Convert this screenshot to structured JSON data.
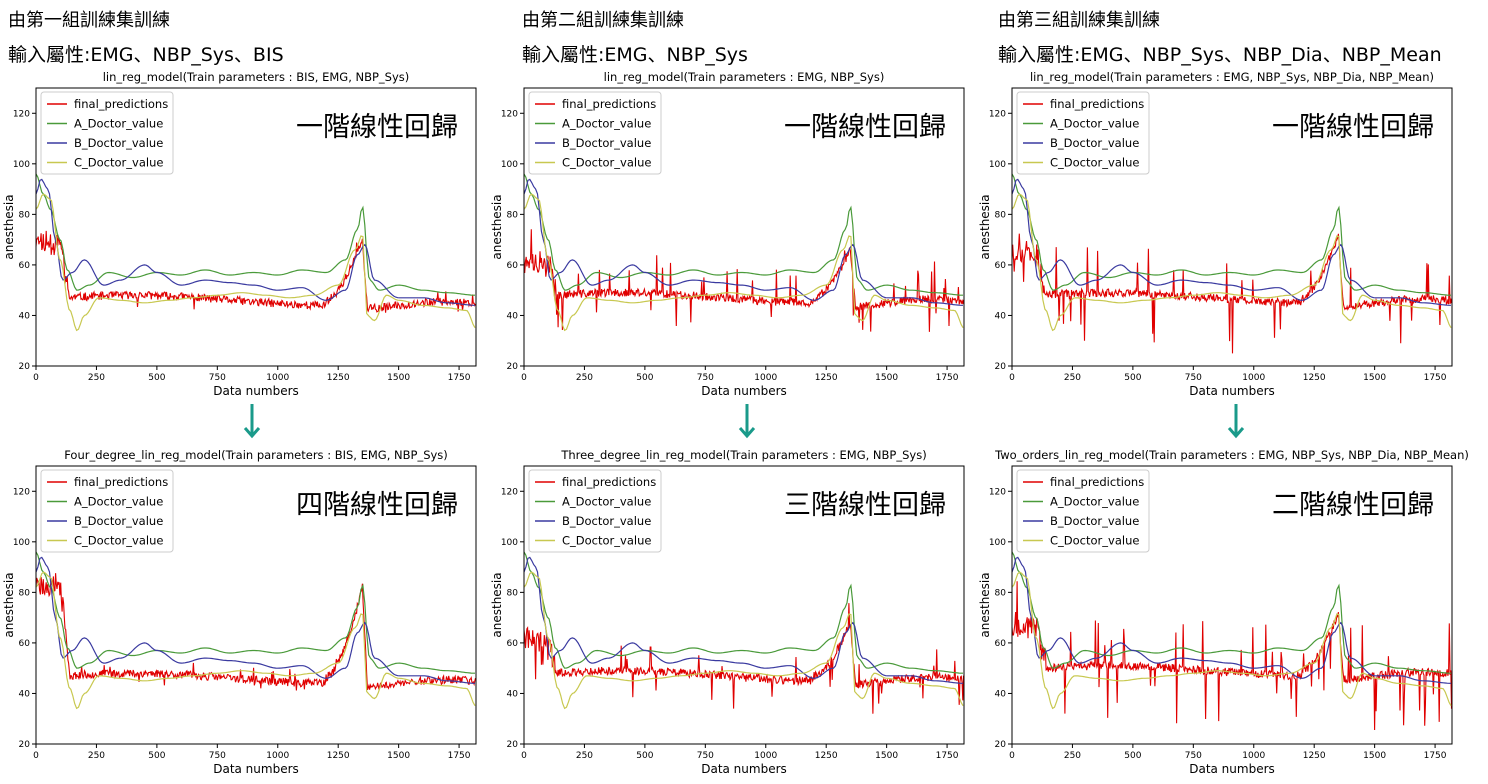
{
  "groups": [
    {
      "heading": "由第一組訓練集訓練",
      "attributes": "輸入屬性:EMG、NBP_Sys、BIS",
      "panels": [
        {
          "title": "lin_reg_model(Train parameters : BIS, EMG, NBP_Sys)",
          "annotation": "一階線性回歸",
          "pred_seed": 11,
          "pred_base": 46,
          "pred_early": 70,
          "spike_amp": 3,
          "spike_rate": 0.03,
          "peak": 70
        },
        {
          "title": "Four_degree_lin_reg_model(Train parameters : BIS, EMG, NBP_Sys)",
          "annotation": "四階線性回歸",
          "pred_seed": 23,
          "pred_base": 46,
          "pred_early": 84,
          "spike_amp": 3,
          "spike_rate": 0.03,
          "peak": 82
        }
      ]
    },
    {
      "heading": "由第二組訓練集訓練",
      "attributes": "輸入屬性:EMG、NBP_Sys",
      "panels": [
        {
          "title": "lin_reg_model(Train parameters : EMG, NBP_Sys)",
          "annotation": "一階線性回歸",
          "pred_seed": 37,
          "pred_base": 47,
          "pred_early": 62,
          "spike_amp": 10,
          "spike_rate": 0.06,
          "peak": 66
        },
        {
          "title": "Three_degree_lin_reg_model(Train parameters : EMG, NBP_Sys)",
          "annotation": "三階線性回歸",
          "pred_seed": 41,
          "pred_base": 47,
          "pred_early": 62,
          "spike_amp": 8,
          "spike_rate": 0.05,
          "peak": 68
        }
      ]
    },
    {
      "heading": "由第三組訓練集訓練",
      "attributes": "輸入屬性:EMG、NBP_Sys、NBP_Dia、NBP_Mean",
      "panels": [
        {
          "title": "lin_reg_model(Train parameters : EMG, NBP_Sys, NBP_Dia, NBP_Mean)",
          "annotation": "一階線性回歸",
          "pred_seed": 53,
          "pred_base": 47,
          "pred_early": 66,
          "spike_amp": 14,
          "spike_rate": 0.06,
          "peak": 72
        },
        {
          "title": "Two_orders_lin_reg_model(Train parameters : EMG, NBP_Sys, NBP_Dia, NBP_Mean)",
          "annotation": "二階線性回歸",
          "pred_seed": 67,
          "pred_base": 49,
          "pred_early": 68,
          "spike_amp": 14,
          "spike_rate": 0.07,
          "peak": 72
        }
      ]
    }
  ],
  "chart_data": {
    "type": "line",
    "xlabel": "Data numbers",
    "ylabel": "anesthesia",
    "xlim": [
      0,
      1820
    ],
    "ylim": [
      20,
      130
    ],
    "xticks": [
      0,
      250,
      500,
      750,
      1000,
      1250,
      1500,
      1750
    ],
    "yticks": [
      20,
      40,
      60,
      80,
      100,
      120
    ],
    "legend_position": "top-left",
    "grid": false,
    "series": [
      {
        "name": "final_predictions",
        "color": "#e00000"
      },
      {
        "name": "A_Doctor_value",
        "color": "#4a9a3a",
        "x": [
          0,
          30,
          60,
          100,
          130,
          170,
          220,
          300,
          400,
          500,
          600,
          700,
          800,
          900,
          1000,
          1100,
          1200,
          1280,
          1330,
          1350,
          1380,
          1420,
          1500,
          1600,
          1700,
          1820
        ],
        "y": [
          96,
          88,
          82,
          70,
          58,
          50,
          52,
          57,
          55,
          57,
          56,
          58,
          56,
          57,
          56,
          58,
          57,
          62,
          74,
          83,
          54,
          50,
          52,
          50,
          49,
          48
        ]
      },
      {
        "name": "B_Doctor_value",
        "color": "#3a3aa0",
        "x": [
          0,
          20,
          50,
          80,
          110,
          150,
          200,
          280,
          350,
          450,
          500,
          600,
          700,
          800,
          900,
          1000,
          1100,
          1200,
          1280,
          1330,
          1360,
          1400,
          1500,
          1600,
          1700,
          1820
        ],
        "y": [
          88,
          94,
          90,
          70,
          54,
          57,
          62,
          52,
          54,
          60,
          57,
          52,
          54,
          53,
          52,
          50,
          51,
          46,
          50,
          64,
          68,
          54,
          47,
          47,
          45,
          44
        ]
      },
      {
        "name": "C_Doctor_value",
        "color": "#c8c850",
        "x": [
          0,
          30,
          60,
          100,
          140,
          170,
          200,
          260,
          350,
          450,
          550,
          650,
          750,
          850,
          950,
          1050,
          1150,
          1250,
          1320,
          1350,
          1370,
          1400,
          1450,
          1500,
          1600,
          1700,
          1780,
          1820
        ],
        "y": [
          82,
          88,
          86,
          62,
          42,
          34,
          40,
          47,
          46,
          45,
          46,
          47,
          48,
          49,
          48,
          47,
          48,
          52,
          66,
          72,
          40,
          38,
          48,
          46,
          44,
          43,
          42,
          35
        ]
      }
    ]
  }
}
